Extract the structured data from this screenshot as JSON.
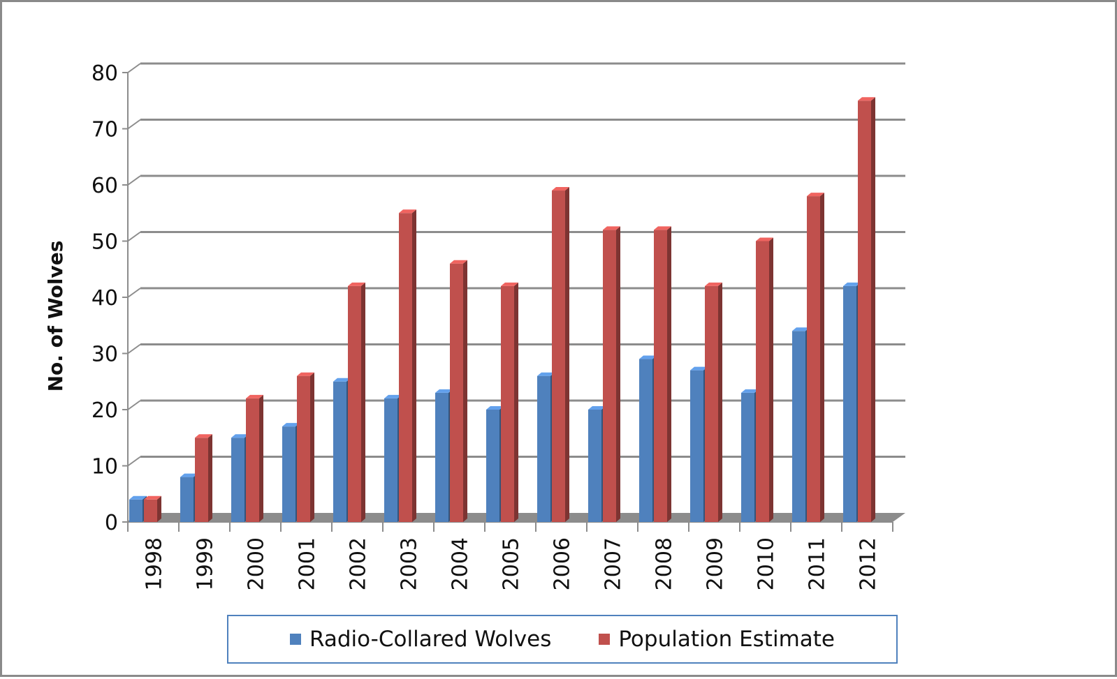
{
  "chart_data": {
    "type": "bar",
    "ylabel": "No. of Wolves",
    "xlabel": "",
    "ylim": [
      0,
      80
    ],
    "yticks": [
      0,
      10,
      20,
      30,
      40,
      50,
      60,
      70,
      80
    ],
    "grid": true,
    "legend_position": "bottom",
    "categories": [
      "1998",
      "1999",
      "2000",
      "2001",
      "2002",
      "2003",
      "2004",
      "2005",
      "2006",
      "2007",
      "2008",
      "2009",
      "2010",
      "2011",
      "2012"
    ],
    "series": [
      {
        "name": "Radio-Collared Wolves",
        "color": "#4f81bd",
        "values": [
          4,
          8,
          15,
          17,
          25,
          22,
          23,
          20,
          26,
          20,
          29,
          27,
          23,
          34,
          42
        ]
      },
      {
        "name": "Population Estimate",
        "color": "#c0504d",
        "values": [
          4,
          15,
          22,
          26,
          42,
          55,
          46,
          42,
          59,
          52,
          52,
          42,
          50,
          58,
          75
        ]
      }
    ]
  }
}
